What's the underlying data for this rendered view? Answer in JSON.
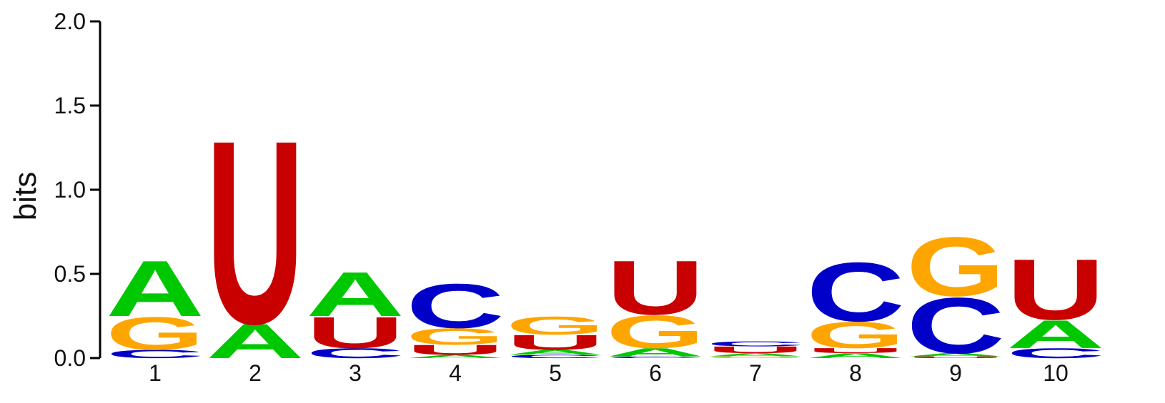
{
  "chart_data": {
    "type": "sequence-logo",
    "ylabel": "bits",
    "ylim": [
      0,
      2.0
    ],
    "yticks": [
      "0.0",
      "0.5",
      "1.0",
      "1.5",
      "2.0"
    ],
    "alphabet_colors": {
      "A": "#00c800",
      "C": "#0000c8",
      "G": "#ffa500",
      "U": "#c80000"
    },
    "positions": [
      {
        "label": "1",
        "stack": [
          {
            "letter": "C",
            "height": 0.05
          },
          {
            "letter": "G",
            "height": 0.2
          },
          {
            "letter": "A",
            "height": 0.34
          }
        ]
      },
      {
        "label": "2",
        "stack": [
          {
            "letter": "A",
            "height": 0.21
          },
          {
            "letter": "U",
            "height": 1.12
          }
        ]
      },
      {
        "label": "3",
        "stack": [
          {
            "letter": "C",
            "height": 0.06
          },
          {
            "letter": "U",
            "height": 0.19
          },
          {
            "letter": "A",
            "height": 0.27
          }
        ]
      },
      {
        "label": "4",
        "stack": [
          {
            "letter": "A",
            "height": 0.02
          },
          {
            "letter": "U",
            "height": 0.06
          },
          {
            "letter": "G",
            "height": 0.1
          },
          {
            "letter": "C",
            "height": 0.27
          }
        ]
      },
      {
        "label": "5",
        "stack": [
          {
            "letter": "C",
            "height": 0.02
          },
          {
            "letter": "A",
            "height": 0.03
          },
          {
            "letter": "U",
            "height": 0.09
          },
          {
            "letter": "G",
            "height": 0.11
          }
        ]
      },
      {
        "label": "6",
        "stack": [
          {
            "letter": "C",
            "height": 0.01
          },
          {
            "letter": "A",
            "height": 0.05
          },
          {
            "letter": "G",
            "height": 0.2
          },
          {
            "letter": "U",
            "height": 0.33
          }
        ]
      },
      {
        "label": "7",
        "stack": [
          {
            "letter": "G",
            "height": 0.01
          },
          {
            "letter": "A",
            "height": 0.02
          },
          {
            "letter": "U",
            "height": 0.04
          },
          {
            "letter": "C",
            "height": 0.03
          }
        ]
      },
      {
        "label": "8",
        "stack": [
          {
            "letter": "A",
            "height": 0.03
          },
          {
            "letter": "U",
            "height": 0.03
          },
          {
            "letter": "G",
            "height": 0.16
          },
          {
            "letter": "C",
            "height": 0.36
          }
        ]
      },
      {
        "label": "9",
        "stack": [
          {
            "letter": "U",
            "height": 0.01
          },
          {
            "letter": "A",
            "height": 0.02
          },
          {
            "letter": "C",
            "height": 0.34
          },
          {
            "letter": "G",
            "height": 0.36
          }
        ]
      },
      {
        "label": "10",
        "stack": [
          {
            "letter": "C",
            "height": 0.06
          },
          {
            "letter": "A",
            "height": 0.17
          },
          {
            "letter": "U",
            "height": 0.37
          }
        ]
      }
    ]
  }
}
